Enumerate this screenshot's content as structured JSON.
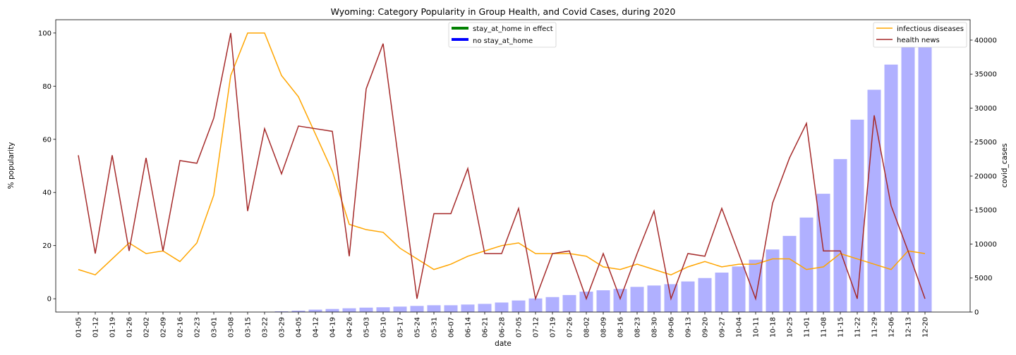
{
  "chart_data": {
    "type": "bar+line",
    "title": "Wyoming: Category Popularity in Group Health, and Covid Cases, during 2020",
    "xlabel": "date",
    "ylabel_left": "% popularity",
    "ylabel_right": "covid_cases",
    "ylim_left": [
      -5,
      105
    ],
    "yticks_left": [
      0,
      20,
      40,
      60,
      80,
      100
    ],
    "ylim_right": [
      0,
      43000
    ],
    "yticks_right": [
      0,
      5000,
      10000,
      15000,
      20000,
      25000,
      30000,
      35000,
      40000
    ],
    "categories": [
      "01-05",
      "01-12",
      "01-19",
      "01-26",
      "02-02",
      "02-09",
      "02-16",
      "02-23",
      "03-01",
      "03-08",
      "03-15",
      "03-22",
      "03-29",
      "04-05",
      "04-12",
      "04-19",
      "04-26",
      "05-03",
      "05-10",
      "05-17",
      "05-24",
      "05-31",
      "06-07",
      "06-14",
      "06-21",
      "06-28",
      "07-05",
      "07-12",
      "07-19",
      "07-26",
      "08-02",
      "08-09",
      "08-16",
      "08-23",
      "08-30",
      "09-06",
      "09-13",
      "09-20",
      "09-27",
      "10-04",
      "10-11",
      "10-18",
      "10-25",
      "11-01",
      "11-08",
      "11-15",
      "11-22",
      "11-29",
      "12-06",
      "12-13",
      "12-20"
    ],
    "bars": {
      "name": "covid_cases",
      "axis": "right",
      "color": "#b0b0ff",
      "values": [
        0,
        0,
        0,
        0,
        0,
        0,
        0,
        0,
        0,
        0,
        0,
        0,
        100,
        200,
        350,
        450,
        550,
        650,
        700,
        800,
        900,
        1000,
        1000,
        1100,
        1200,
        1400,
        1700,
        2000,
        2200,
        2500,
        3000,
        3200,
        3400,
        3700,
        3900,
        4100,
        4500,
        5000,
        5800,
        6700,
        7700,
        9200,
        11200,
        13900,
        17400,
        22500,
        28300,
        32700,
        36400,
        39300,
        41700
      ]
    },
    "series": [
      {
        "name": "infectious diseases",
        "axis": "left",
        "color": "#ffa500",
        "values": [
          11,
          9,
          15,
          21,
          17,
          18,
          14,
          21,
          39,
          84,
          100,
          100,
          84,
          76,
          62,
          48,
          28,
          26,
          25,
          19,
          15,
          11,
          13,
          16,
          18,
          20,
          21,
          17,
          17,
          17,
          16,
          12,
          11,
          13,
          11,
          9,
          12,
          14,
          12,
          13,
          13,
          15,
          15,
          11,
          12,
          17,
          15,
          13,
          11,
          18,
          17
        ]
      },
      {
        "name": "health news",
        "axis": "left",
        "color": "#a52a2a",
        "values": [
          54,
          17,
          54,
          18,
          53,
          18,
          52,
          51,
          68,
          100,
          33,
          64,
          47,
          65,
          64,
          63,
          16,
          79,
          96,
          48,
          0,
          32,
          32,
          49,
          17,
          17,
          34,
          0,
          17,
          18,
          0,
          17,
          0,
          17,
          33,
          0,
          17,
          16,
          34,
          17,
          0,
          36,
          53,
          66,
          18,
          18,
          0,
          69,
          35,
          18,
          0
        ]
      }
    ],
    "legend_left": {
      "placement": "top-center",
      "items": [
        {
          "label": "stay_at_home in effect",
          "color": "#008000"
        },
        {
          "label": "no stay_at_home",
          "color": "#0000ff"
        }
      ]
    },
    "legend_right": {
      "placement": "top-right",
      "items": [
        {
          "label": "infectious diseases",
          "color": "#ffa500"
        },
        {
          "label": "health news",
          "color": "#a52a2a"
        }
      ]
    }
  }
}
